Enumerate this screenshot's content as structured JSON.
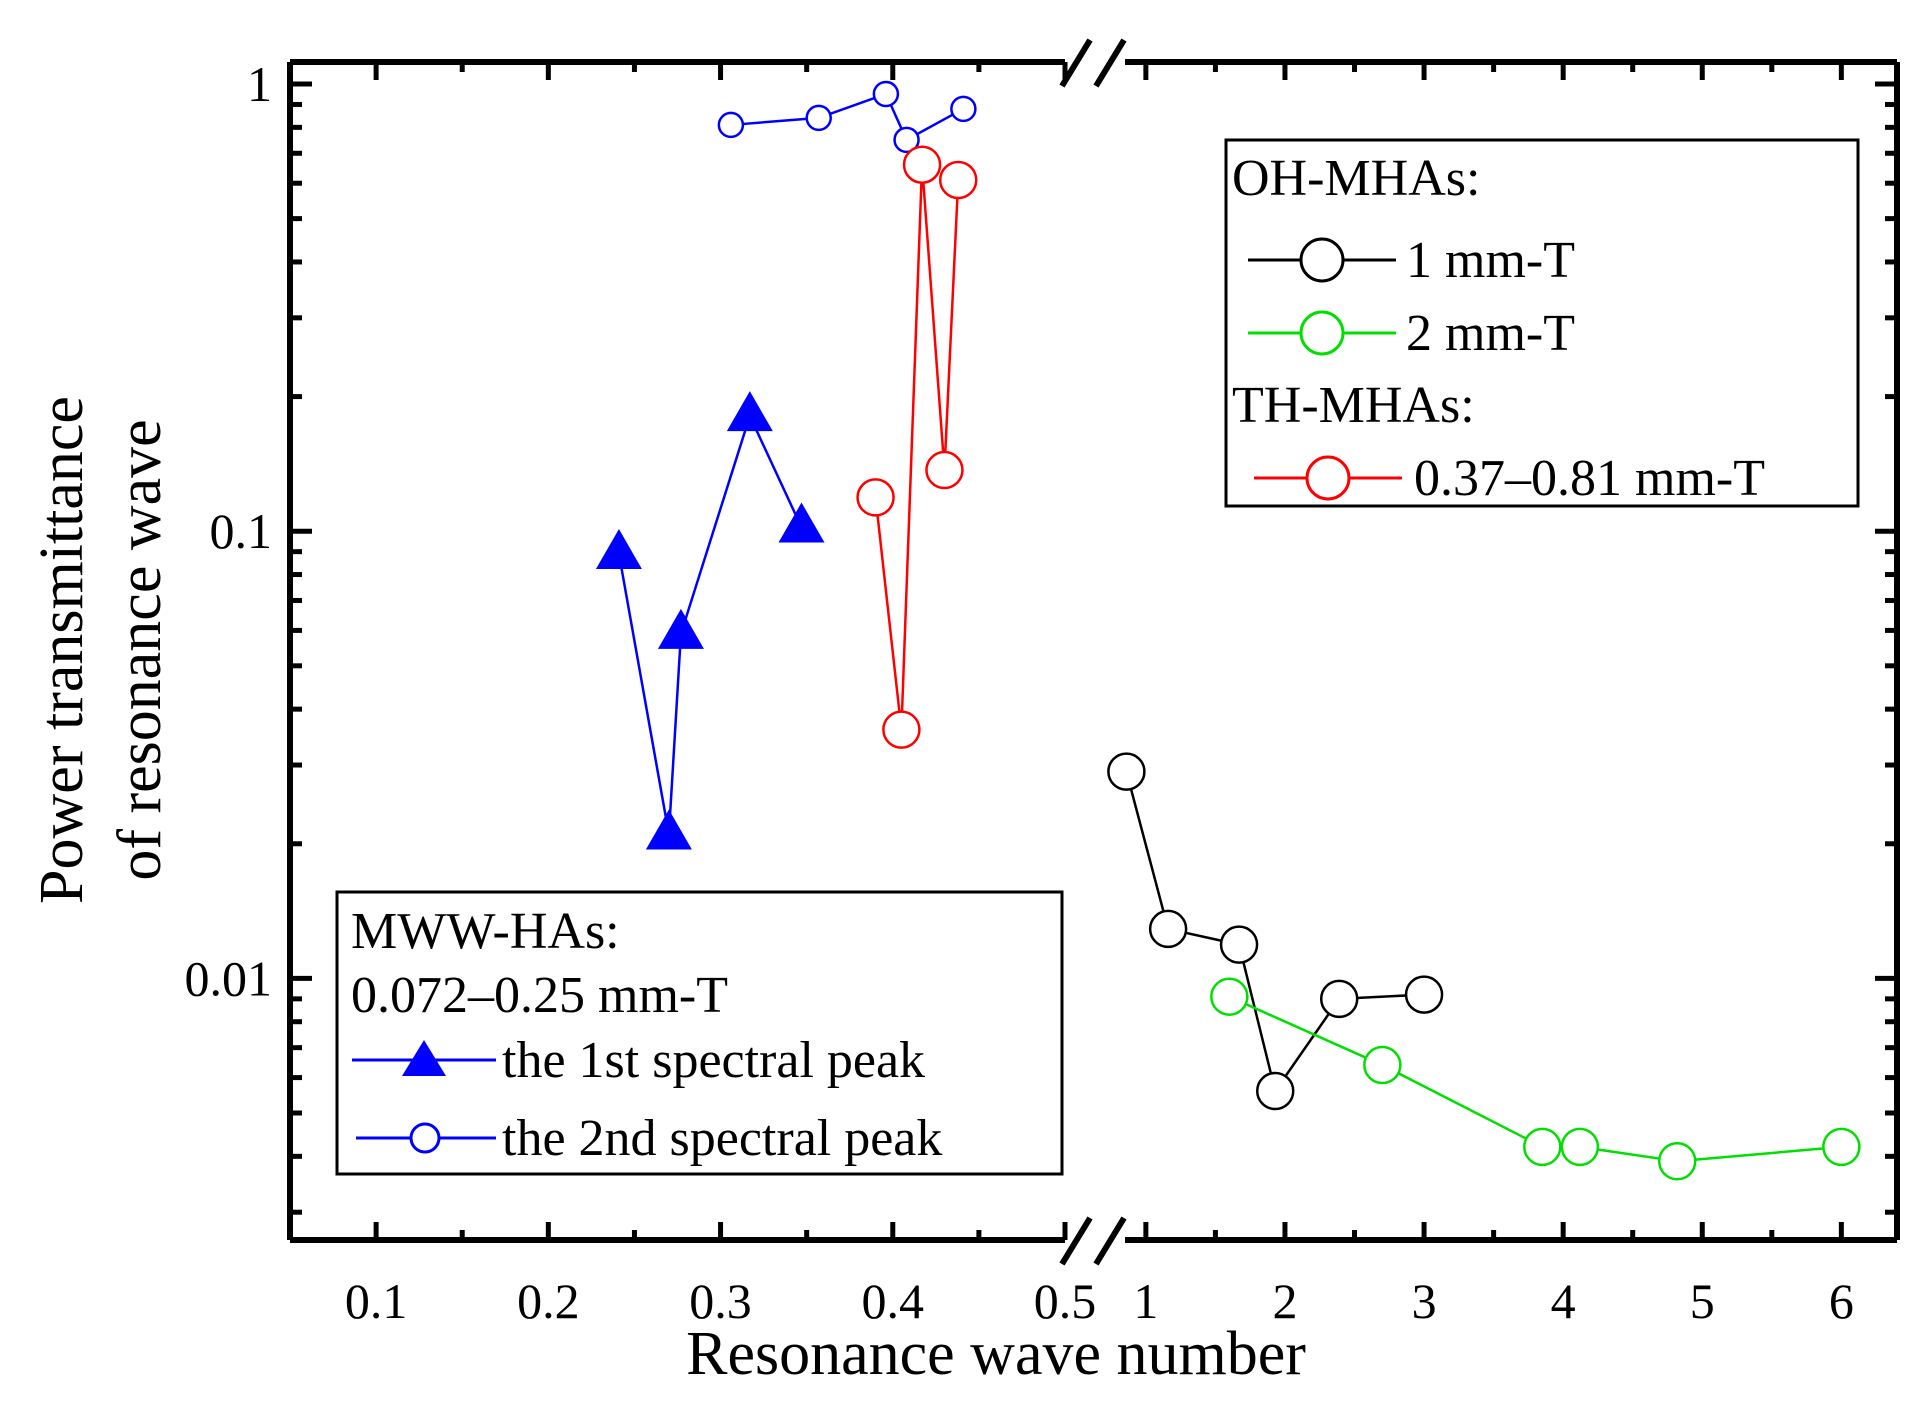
{
  "chart_data": {
    "type": "scatter",
    "x_axis_left": {
      "label": "Resonance wave number",
      "range": [
        0.05,
        0.5
      ],
      "ticks": [
        "0.1",
        "0.2",
        "0.3",
        "0.4",
        "0.5"
      ],
      "tick_values": [
        0.1,
        0.2,
        0.3,
        0.4,
        0.5
      ]
    },
    "x_axis_right": {
      "range": [
        0.85,
        6.4
      ],
      "ticks": [
        "1",
        "2",
        "3",
        "4",
        "5",
        "6"
      ],
      "tick_values": [
        1,
        2,
        3,
        4,
        5,
        6
      ]
    },
    "ylabel_line1": "Power transmittance",
    "ylabel_line2": "of resonance wave",
    "y_axis": {
      "scale": "log",
      "range": [
        0.0026,
        1.12
      ],
      "ticks": [
        "1",
        "0.1",
        "0.01"
      ],
      "tick_values": [
        1,
        0.1,
        0.01
      ]
    },
    "axis_break": "x",
    "series": [
      {
        "name": "the 1st spectral peak",
        "group": "MWW-HAs",
        "panel": "left",
        "color": "#0000ff",
        "marker": "filled-triangle",
        "marker_size": "large",
        "x": [
          0.241,
          0.27,
          0.277,
          0.317,
          0.347
        ],
        "y": [
          0.089,
          0.021,
          0.059,
          0.181,
          0.102
        ]
      },
      {
        "name": "the 2nd spectral peak",
        "group": "MWW-HAs",
        "panel": "left",
        "color": "#0000ff",
        "marker": "open-circle",
        "marker_size": "small",
        "x": [
          0.306,
          0.357,
          0.396,
          0.408,
          0.441
        ],
        "y": [
          0.81,
          0.84,
          0.95,
          0.75,
          0.88
        ]
      },
      {
        "name": "0.37–0.81 mm-T",
        "group": "TH-MHAs",
        "panel": "left",
        "color": "#ff0000",
        "marker": "open-circle",
        "marker_size": "large",
        "x": [
          0.39,
          0.405,
          0.417,
          0.43,
          0.438
        ],
        "y": [
          0.119,
          0.036,
          0.66,
          0.137,
          0.61
        ]
      },
      {
        "name": "1 mm-T",
        "group": "OH-MHAs",
        "panel": "right",
        "color": "#000000",
        "marker": "open-circle",
        "marker_size": "large",
        "x": [
          0.86,
          1.16,
          1.67,
          1.93,
          2.39,
          3.0
        ],
        "y": [
          0.029,
          0.0129,
          0.0119,
          0.0056,
          0.009,
          0.0092
        ]
      },
      {
        "name": "2 mm-T",
        "group": "OH-MHAs",
        "panel": "right",
        "color": "#00e000",
        "marker": "open-circle",
        "marker_size": "large",
        "x": [
          1.6,
          2.7,
          3.85,
          4.12,
          4.82,
          6.0
        ],
        "y": [
          0.0091,
          0.0064,
          0.0042,
          0.0042,
          0.0039,
          0.0042
        ]
      }
    ],
    "legend_top_right": {
      "heading1": "OH-MHAs:",
      "entry1": "1 mm-T",
      "entry2": "2 mm-T",
      "heading2": "TH-MHAs:",
      "entry3": "0.37–0.81 mm-T"
    },
    "legend_bottom_left": {
      "heading1": "MWW-HAs:",
      "heading2": "0.072–0.25 mm-T",
      "entry1": "the 1st spectral peak",
      "entry2": "the 2nd spectral peak"
    }
  }
}
